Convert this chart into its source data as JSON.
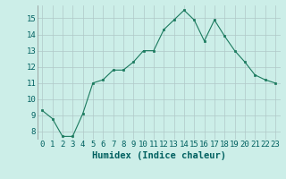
{
  "x": [
    0,
    1,
    2,
    3,
    4,
    5,
    6,
    7,
    8,
    9,
    10,
    11,
    12,
    13,
    14,
    15,
    16,
    17,
    18,
    19,
    20,
    21,
    22,
    23
  ],
  "y": [
    9.3,
    8.8,
    7.7,
    7.7,
    9.1,
    11.0,
    11.2,
    11.8,
    11.8,
    12.3,
    13.0,
    13.0,
    14.3,
    14.9,
    15.5,
    14.9,
    13.6,
    14.9,
    13.9,
    13.0,
    12.3,
    11.5,
    11.2,
    11.0
  ],
  "line_color": "#1a7a5e",
  "marker_color": "#1a7a5e",
  "bg_color": "#cceee8",
  "grid_color": "#b0c8c8",
  "xlabel": "Humidex (Indice chaleur)",
  "ylim": [
    7.5,
    15.8
  ],
  "xlim": [
    -0.5,
    23.5
  ],
  "yticks": [
    8,
    9,
    10,
    11,
    12,
    13,
    14,
    15
  ],
  "xtick_labels": [
    "0",
    "1",
    "2",
    "3",
    "4",
    "5",
    "6",
    "7",
    "8",
    "9",
    "10",
    "11",
    "12",
    "13",
    "14",
    "15",
    "16",
    "17",
    "18",
    "19",
    "20",
    "21",
    "22",
    "23"
  ],
  "tick_color": "#006060",
  "xlabel_color": "#006060",
  "tick_fontsize": 6.5,
  "xlabel_fontsize": 7.5
}
